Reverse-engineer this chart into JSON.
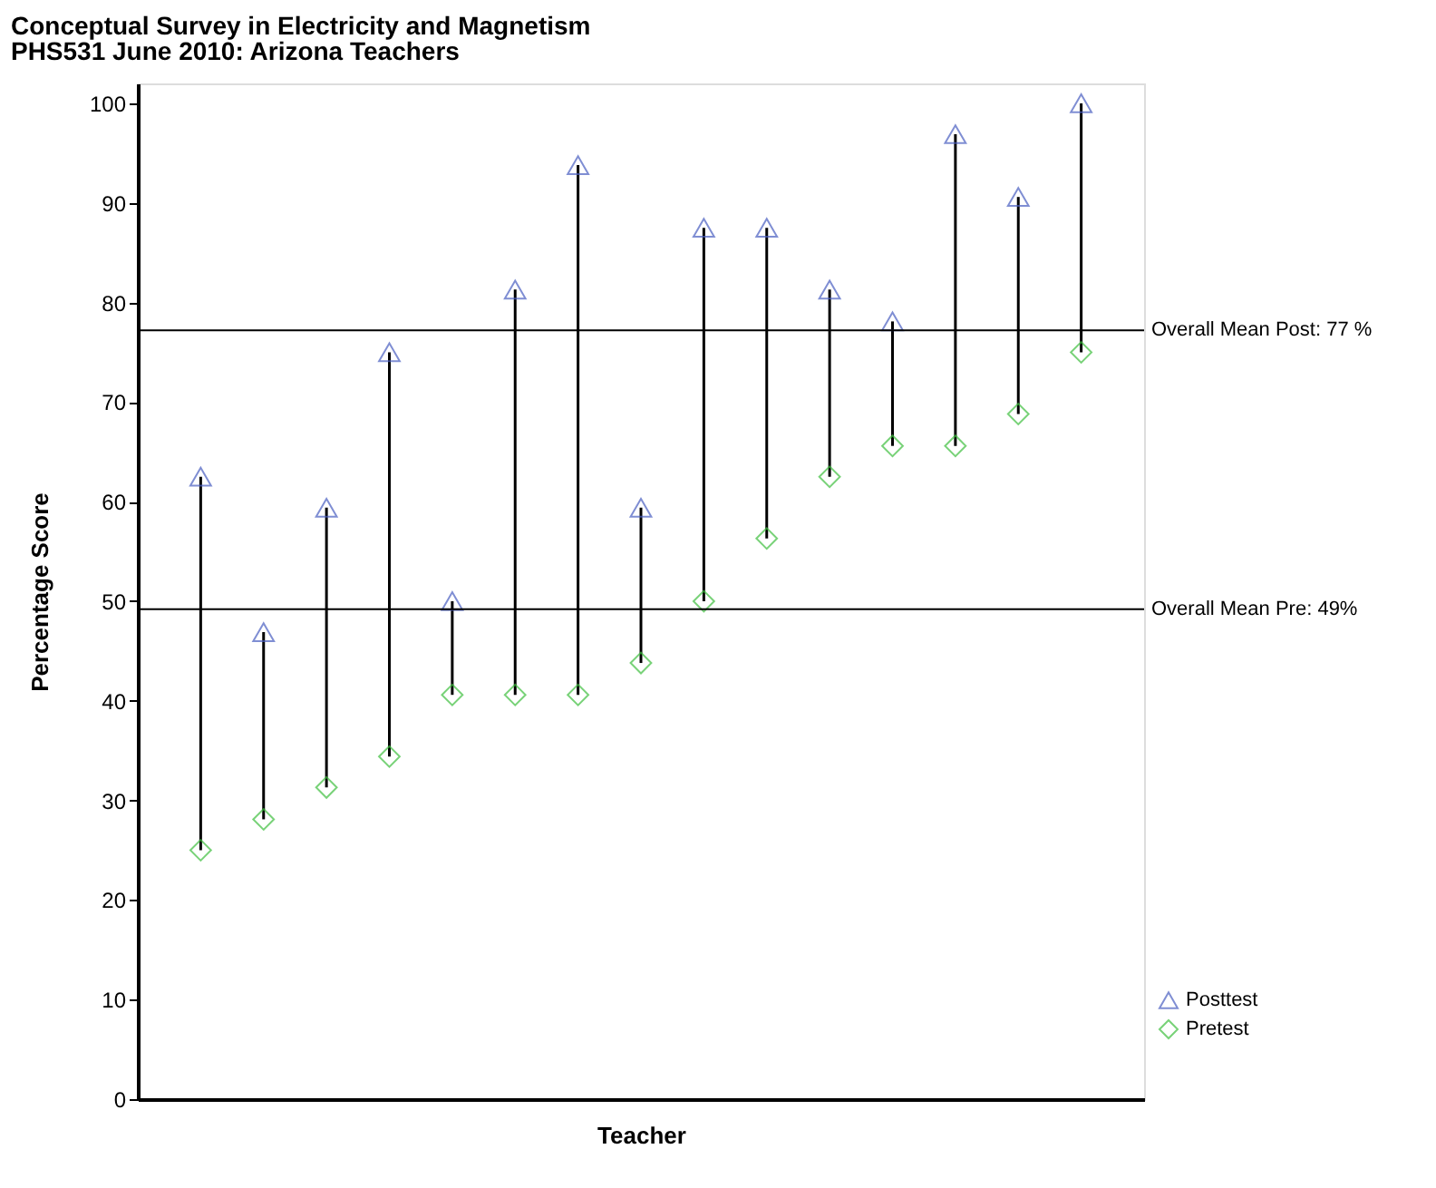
{
  "chart_data": {
    "type": "scatter",
    "title": "Conceptual Survey in Electricity and Magnetism",
    "subtitle": "PHS531 June 2010: Arizona Teachers",
    "xlabel": "Teacher",
    "ylabel": "Percentage Score",
    "categories": [
      null,
      null,
      null,
      null,
      null,
      null,
      null,
      null,
      null,
      null,
      null,
      null,
      null,
      null,
      null
    ],
    "series": [
      {
        "name": "Posttest",
        "color": "#4a5fc1",
        "marker": "triangle",
        "values": [
          62.5,
          46.9,
          59.4,
          75.0,
          50.0,
          81.3,
          93.8,
          59.4,
          87.5,
          87.5,
          81.3,
          78.1,
          96.9,
          90.6,
          100.0
        ]
      },
      {
        "name": "Pretest",
        "color": "#3fbf3f",
        "marker": "diamond",
        "values": [
          25.0,
          28.1,
          31.3,
          34.4,
          40.6,
          40.6,
          40.6,
          43.8,
          50.0,
          56.3,
          62.5,
          65.6,
          65.6,
          68.8,
          75.0
        ]
      }
    ],
    "ylim": [
      0,
      102
    ],
    "yticks": [
      0,
      10,
      20,
      30,
      40,
      50,
      60,
      70,
      80,
      90,
      100
    ],
    "grid": false,
    "legend": "bottom right",
    "ref_lines": [
      {
        "axis": "y",
        "value": 77.2,
        "label": "Overall Mean Post: 77 %"
      },
      {
        "axis": "y",
        "value": 49.2,
        "label": "Overall Mean Pre: 49%"
      }
    ]
  }
}
